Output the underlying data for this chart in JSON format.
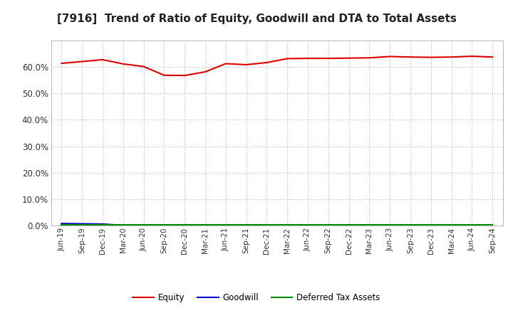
{
  "title": "[7916]  Trend of Ratio of Equity, Goodwill and DTA to Total Assets",
  "x_labels": [
    "Jun-19",
    "Sep-19",
    "Dec-19",
    "Mar-20",
    "Jun-20",
    "Sep-20",
    "Dec-20",
    "Mar-21",
    "Jun-21",
    "Sep-21",
    "Dec-21",
    "Mar-22",
    "Jun-22",
    "Sep-22",
    "Dec-22",
    "Mar-23",
    "Jun-23",
    "Sep-23",
    "Dec-23",
    "Mar-24",
    "Jun-24",
    "Sep-24"
  ],
  "equity": [
    0.614,
    0.621,
    0.628,
    0.612,
    0.602,
    0.569,
    0.568,
    0.582,
    0.613,
    0.609,
    0.617,
    0.632,
    0.633,
    0.633,
    0.634,
    0.635,
    0.64,
    0.638,
    0.637,
    0.638,
    0.641,
    0.638
  ],
  "goodwill": [
    0.007,
    0.006,
    0.005,
    0.0,
    0.0,
    0.0,
    0.0,
    0.0,
    0.0,
    0.0,
    0.0,
    0.0,
    0.0,
    0.0,
    0.0,
    0.0,
    0.0,
    0.0,
    0.0,
    0.0,
    0.0,
    0.0
  ],
  "dta": [
    0.001,
    0.001,
    0.001,
    0.001,
    0.001,
    0.001,
    0.001,
    0.001,
    0.001,
    0.001,
    0.001,
    0.001,
    0.001,
    0.001,
    0.001,
    0.001,
    0.001,
    0.001,
    0.001,
    0.001,
    0.001,
    0.001
  ],
  "equity_color": "#dd0000",
  "goodwill_color": "#0000cc",
  "dta_color": "#008800",
  "ylim": [
    0.0,
    0.7
  ],
  "yticks": [
    0.0,
    0.1,
    0.2,
    0.3,
    0.4,
    0.5,
    0.6
  ],
  "background_color": "#ffffff",
  "plot_bg_color": "#ffffff",
  "grid_color": "#aaaaaa",
  "title_fontsize": 11,
  "legend_labels": [
    "Equity",
    "Goodwill",
    "Deferred Tax Assets"
  ]
}
